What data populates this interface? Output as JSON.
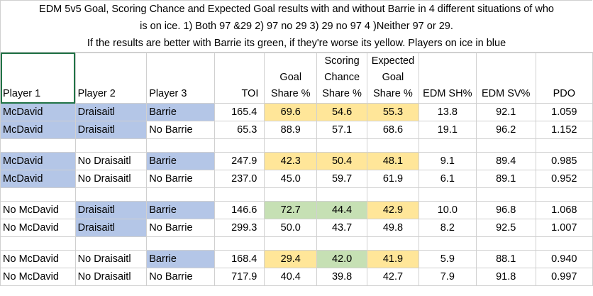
{
  "title": {
    "line1": "EDM 5v5 Goal, Scoring Chance and Expected Goal results with and without Barrie in 4 different situations of who",
    "line2": "is on ice.   1) Both 97 &29  2) 97 no 29  3) 29 no 97  4 )Neither 97 or 29.",
    "line3": "If the results are better with Barrie its green, if they're worse its yellow. Players on ice in blue"
  },
  "header": {
    "player1": "Player 1",
    "player2": "Player 2",
    "player3": "Player 3",
    "toi": "TOI",
    "goal_l1": "Goal",
    "goal_l2": "Share %",
    "chance_l1": "Scoring",
    "chance_l2": "Chance",
    "chance_l3": "Share %",
    "xg_l1": "Expected",
    "xg_l2": "Goal",
    "xg_l3": "Share %",
    "sh": "EDM SH%",
    "sv": "EDM SV%",
    "pdo": "PDO"
  },
  "rows": [
    {
      "p1": "McDavid",
      "p2": "Draisaitl",
      "p3": "Barrie",
      "toi": "165.4",
      "goal": "69.6",
      "chance": "54.6",
      "xg": "55.3",
      "sh": "13.8",
      "sv": "92.1",
      "pdo": "1.059"
    },
    {
      "p1": "McDavid",
      "p2": "Draisaitl",
      "p3": "No Barrie",
      "toi": "65.3",
      "goal": "88.9",
      "chance": "57.1",
      "xg": "68.6",
      "sh": "19.1",
      "sv": "96.2",
      "pdo": "1.152"
    },
    {
      "p1": "McDavid",
      "p2": "No Draisaitl",
      "p3": "Barrie",
      "toi": "247.9",
      "goal": "42.3",
      "chance": "50.4",
      "xg": "48.1",
      "sh": "9.1",
      "sv": "89.4",
      "pdo": "0.985"
    },
    {
      "p1": "McDavid",
      "p2": "No Draisaitl",
      "p3": "No Barrie",
      "toi": "237.0",
      "goal": "45.0",
      "chance": "59.7",
      "xg": "61.9",
      "sh": "6.1",
      "sv": "89.1",
      "pdo": "0.952"
    },
    {
      "p1": "No McDavid",
      "p2": "Draisaitl",
      "p3": "Barrie",
      "toi": "146.6",
      "goal": "72.7",
      "chance": "44.4",
      "xg": "42.9",
      "sh": "10.0",
      "sv": "96.8",
      "pdo": "1.068"
    },
    {
      "p1": "No McDavid",
      "p2": "Draisaitl",
      "p3": "No Barrie",
      "toi": "299.3",
      "goal": "50.0",
      "chance": "43.7",
      "xg": "49.8",
      "sh": "8.2",
      "sv": "92.5",
      "pdo": "1.007"
    },
    {
      "p1": "No McDavid",
      "p2": "No Draisaitl",
      "p3": "Barrie",
      "toi": "168.4",
      "goal": "29.4",
      "chance": "42.0",
      "xg": "41.9",
      "sh": "5.9",
      "sv": "88.1",
      "pdo": "0.940"
    },
    {
      "p1": "No McDavid",
      "p2": "No Draisaitl",
      "p3": "No Barrie",
      "toi": "717.9",
      "goal": "40.4",
      "chance": "39.8",
      "xg": "42.7",
      "sh": "7.9",
      "sv": "91.8",
      "pdo": "0.997"
    }
  ],
  "colors": {
    "blue": "#b4c6e7",
    "yellow": "#ffe699",
    "green": "#c6e0b4",
    "grid": "#d0d0d0",
    "selection": "#217346"
  }
}
